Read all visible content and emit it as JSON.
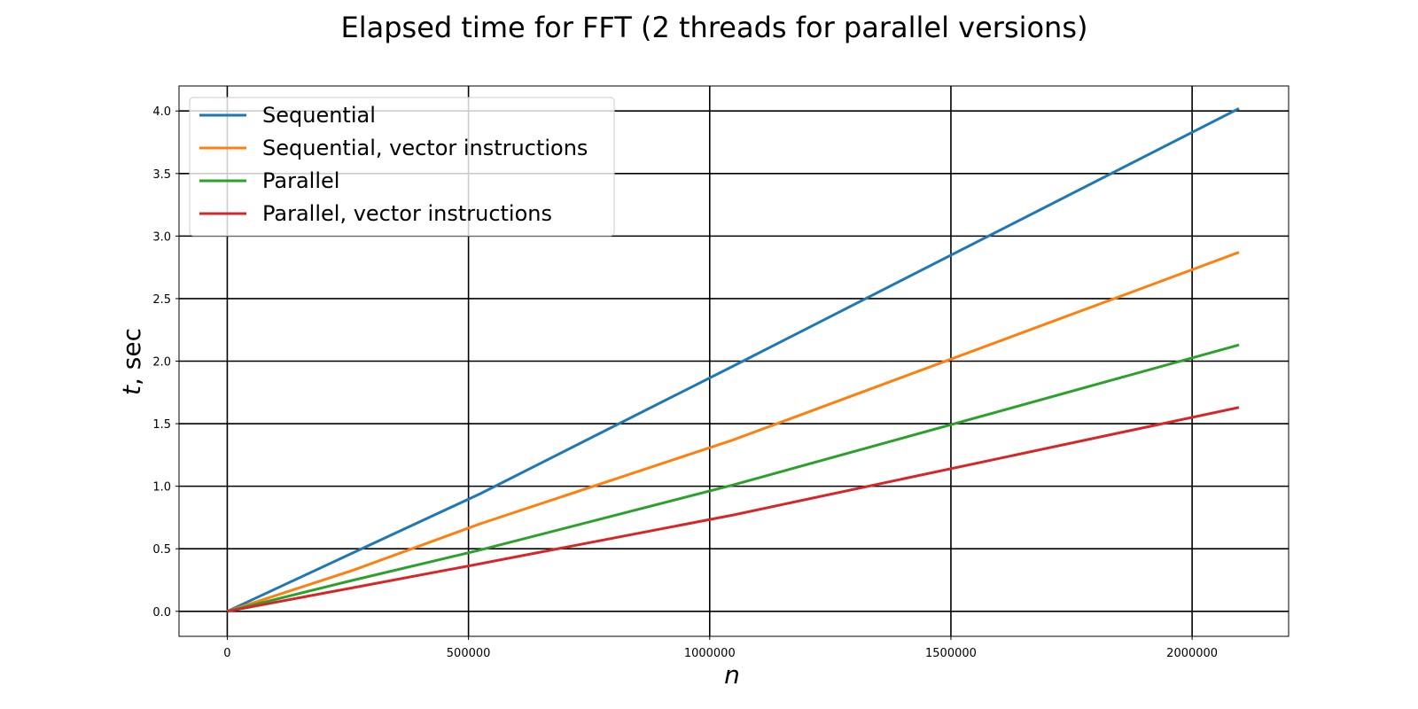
{
  "chart_data": {
    "type": "line",
    "title": "Elapsed time for FFT (2 threads for parallel versions)",
    "xlabel_var": "n",
    "ylabel_var": "t",
    "ylabel_unit": ", sec",
    "x": [
      0,
      262144,
      524288,
      1048576,
      2097152
    ],
    "xlim": [
      -100000,
      2200000
    ],
    "ylim": [
      -0.2,
      4.2
    ],
    "xticks": [
      0,
      500000,
      1000000,
      1500000,
      2000000
    ],
    "xtick_labels": [
      "0",
      "500000",
      "1000000",
      "1500000",
      "2000000"
    ],
    "yticks": [
      0.0,
      0.5,
      1.0,
      1.5,
      2.0,
      2.5,
      3.0,
      3.5,
      4.0
    ],
    "ytick_labels": [
      "0.0",
      "0.5",
      "1.0",
      "1.5",
      "2.0",
      "2.5",
      "3.0",
      "3.5",
      "4.0"
    ],
    "grid": true,
    "legend_position": "top-left",
    "series": [
      {
        "name": "Sequential",
        "color": "#1f77b4",
        "values": [
          0,
          0.47,
          0.94,
          1.96,
          4.02
        ]
      },
      {
        "name": "Sequential, vector instructions",
        "color": "#ff7f0e",
        "values": [
          0,
          0.33,
          0.7,
          1.37,
          2.87
        ]
      },
      {
        "name": "Parallel",
        "color": "#2ca02c",
        "values": [
          0,
          0.25,
          0.49,
          1.01,
          2.13
        ]
      },
      {
        "name": "Parallel, vector instructions",
        "color": "#d62728",
        "values": [
          0,
          0.19,
          0.38,
          0.77,
          1.63
        ]
      }
    ]
  }
}
